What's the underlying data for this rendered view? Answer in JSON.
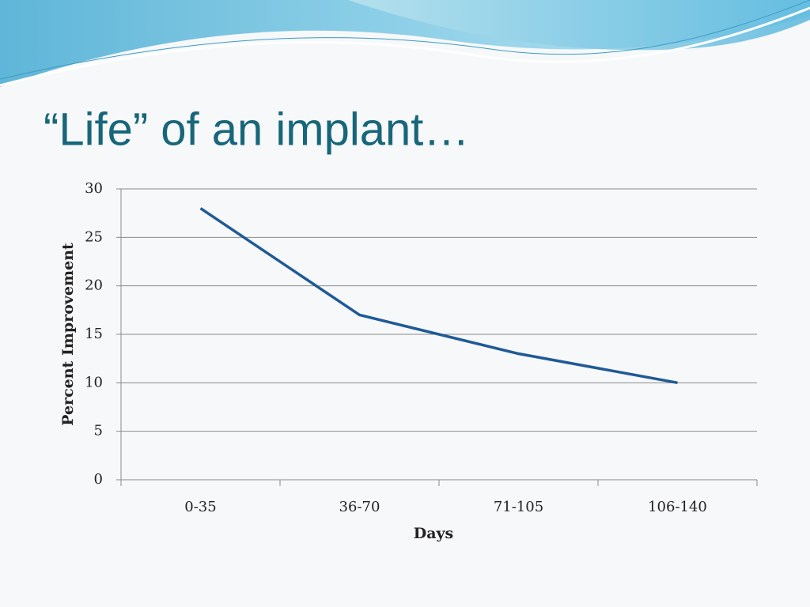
{
  "chart_data": {
    "type": "line",
    "title": "“Life” of an implant…",
    "categories": [
      "0-35",
      "36-70",
      "71-105",
      "106-140"
    ],
    "series": [
      {
        "name": "Percent Improvement",
        "color": "#1f5a96",
        "values": [
          28,
          17,
          13,
          10
        ]
      }
    ],
    "x_label": "Days",
    "y_label": "Percent Improvement",
    "ylim": [
      0,
      30
    ],
    "yticks": [
      0,
      5,
      10,
      15,
      20,
      25,
      30
    ],
    "grid": true
  }
}
